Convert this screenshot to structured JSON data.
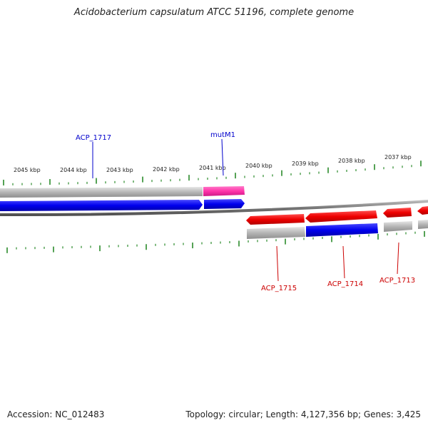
{
  "title": "Acidobacterium capsulatum ATCC 51196, complete genome",
  "footer": {
    "accession": "Accession: NC_012483",
    "topology": "Topology: circular; Length: 4,127,356 bp; Genes: 3,425"
  },
  "scale": {
    "unit": "kbp",
    "tick_labels": [
      "2045 kbp",
      "2044 kbp",
      "2043 kbp",
      "2042 kbp",
      "2041 kbp",
      "2040 kbp",
      "2039 kbp",
      "2038 kbp",
      "2037 kbp"
    ]
  },
  "gene_labels": {
    "acp_1717": "ACP_1717",
    "mutm1": "mutM1",
    "acp_1715": "ACP_1715",
    "acp_1714": "ACP_1714",
    "acp_1713": "ACP_1713"
  },
  "colors": {
    "forward_cds": "#0000ee",
    "reverse_cds": "#ee0000",
    "highlight_gene": "#ff33aa",
    "gene_bar": "#b5b5b5",
    "backbone": "#777777",
    "tick": "#2a8a2a",
    "forward_label": "#0000cc",
    "reverse_label": "#cc0000"
  }
}
